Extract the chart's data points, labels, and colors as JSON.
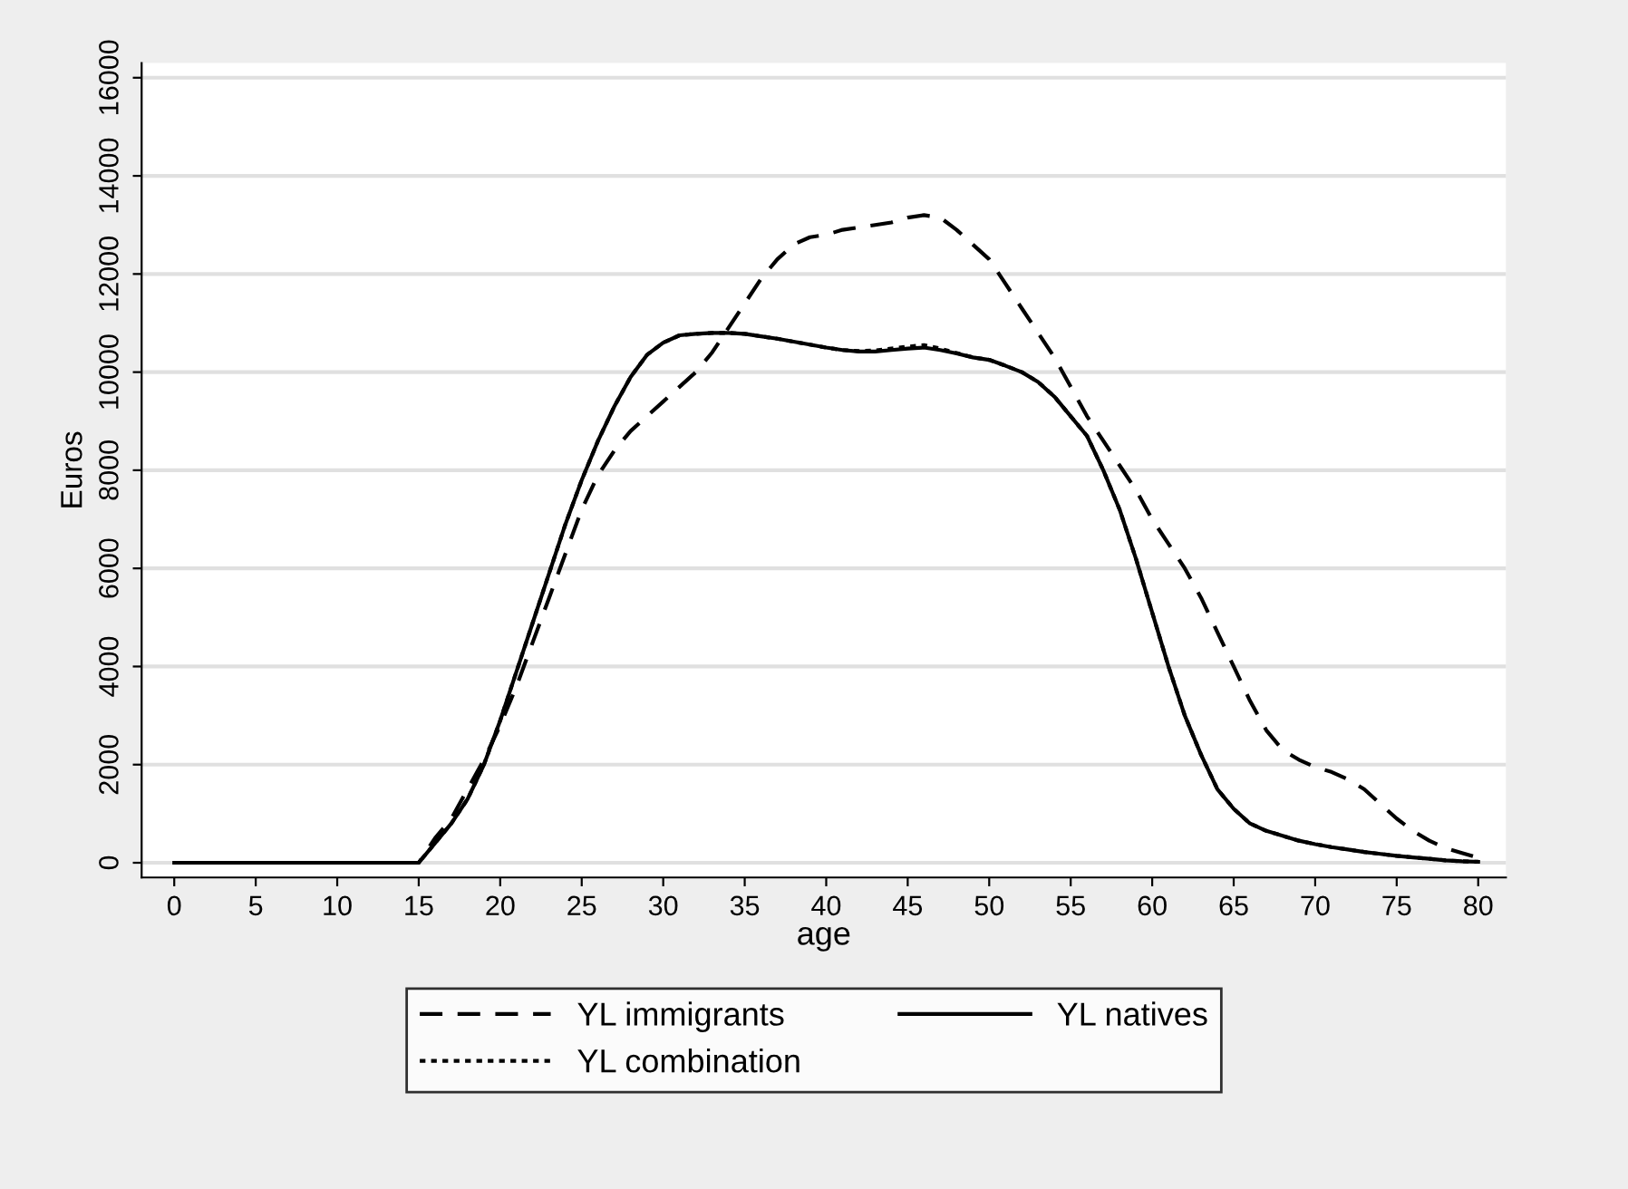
{
  "chart_data": {
    "type": "line",
    "xlabel": "age",
    "ylabel": "Euros",
    "xlim": [
      -2,
      81.7
    ],
    "ylim": [
      -300,
      16300
    ],
    "xticks": [
      0,
      5,
      10,
      15,
      20,
      25,
      30,
      35,
      40,
      45,
      50,
      55,
      60,
      65,
      70,
      75,
      80
    ],
    "yticks": [
      0,
      2000,
      4000,
      6000,
      8000,
      10000,
      12000,
      14000,
      16000
    ],
    "grid": "y",
    "legend": "bottom",
    "x": [
      0,
      15,
      16,
      17,
      18,
      19,
      20,
      21,
      22,
      23,
      24,
      25,
      26,
      27,
      28,
      29,
      30,
      31,
      32,
      33,
      34,
      35,
      36,
      37,
      38,
      39,
      40,
      41,
      42,
      43,
      44,
      45,
      46,
      47,
      48,
      49,
      50,
      51,
      52,
      53,
      54,
      55,
      56,
      57,
      58,
      59,
      60,
      61,
      62,
      63,
      64,
      65,
      66,
      67,
      68,
      69,
      70,
      71,
      72,
      73,
      74,
      75,
      76,
      77,
      78,
      79,
      80
    ],
    "series": [
      {
        "name": "YL immigrants",
        "color": "#000000",
        "line_style": "dashed",
        "values": [
          0,
          0,
          500,
          900,
          1500,
          2100,
          2800,
          3600,
          4500,
          5400,
          6300,
          7200,
          7900,
          8400,
          8800,
          9100,
          9400,
          9700,
          10000,
          10400,
          10900,
          11400,
          11900,
          12300,
          12600,
          12750,
          12800,
          12900,
          12950,
          13000,
          13050,
          13150,
          13200,
          13150,
          12900,
          12600,
          12300,
          11800,
          11300,
          10800,
          10300,
          9700,
          9100,
          8600,
          8100,
          7600,
          7000,
          6500,
          6000,
          5400,
          4700,
          4000,
          3300,
          2700,
          2300,
          2100,
          1950,
          1850,
          1700,
          1500,
          1200,
          900,
          650,
          450,
          300,
          200,
          100
        ]
      },
      {
        "name": "YL natives",
        "color": "#000000",
        "line_style": "solid",
        "values": [
          0,
          0,
          400,
          800,
          1300,
          2000,
          2900,
          3900,
          4900,
          5900,
          6900,
          7800,
          8600,
          9300,
          9900,
          10350,
          10600,
          10750,
          10780,
          10800,
          10800,
          10780,
          10730,
          10680,
          10620,
          10560,
          10500,
          10450,
          10420,
          10420,
          10450,
          10480,
          10500,
          10450,
          10380,
          10300,
          10250,
          10130,
          10000,
          9800,
          9500,
          9100,
          8700,
          8000,
          7200,
          6200,
          5100,
          4000,
          3000,
          2200,
          1500,
          1100,
          800,
          650,
          550,
          450,
          380,
          320,
          270,
          220,
          180,
          140,
          110,
          80,
          50,
          30,
          20
        ]
      },
      {
        "name": "YL combination",
        "color": "#000000",
        "line_style": "dotted",
        "values": [
          0,
          0,
          400,
          800,
          1300,
          2000,
          2900,
          3900,
          4900,
          5900,
          6900,
          7800,
          8600,
          9300,
          9900,
          10350,
          10600,
          10750,
          10780,
          10800,
          10800,
          10780,
          10730,
          10680,
          10620,
          10560,
          10500,
          10450,
          10430,
          10440,
          10480,
          10520,
          10550,
          10480,
          10390,
          10300,
          10250,
          10130,
          10000,
          9800,
          9500,
          9100,
          8700,
          8000,
          7200,
          6200,
          5100,
          4000,
          3000,
          2200,
          1500,
          1100,
          800,
          650,
          550,
          450,
          380,
          320,
          270,
          220,
          180,
          140,
          110,
          80,
          50,
          30,
          20
        ]
      }
    ]
  }
}
